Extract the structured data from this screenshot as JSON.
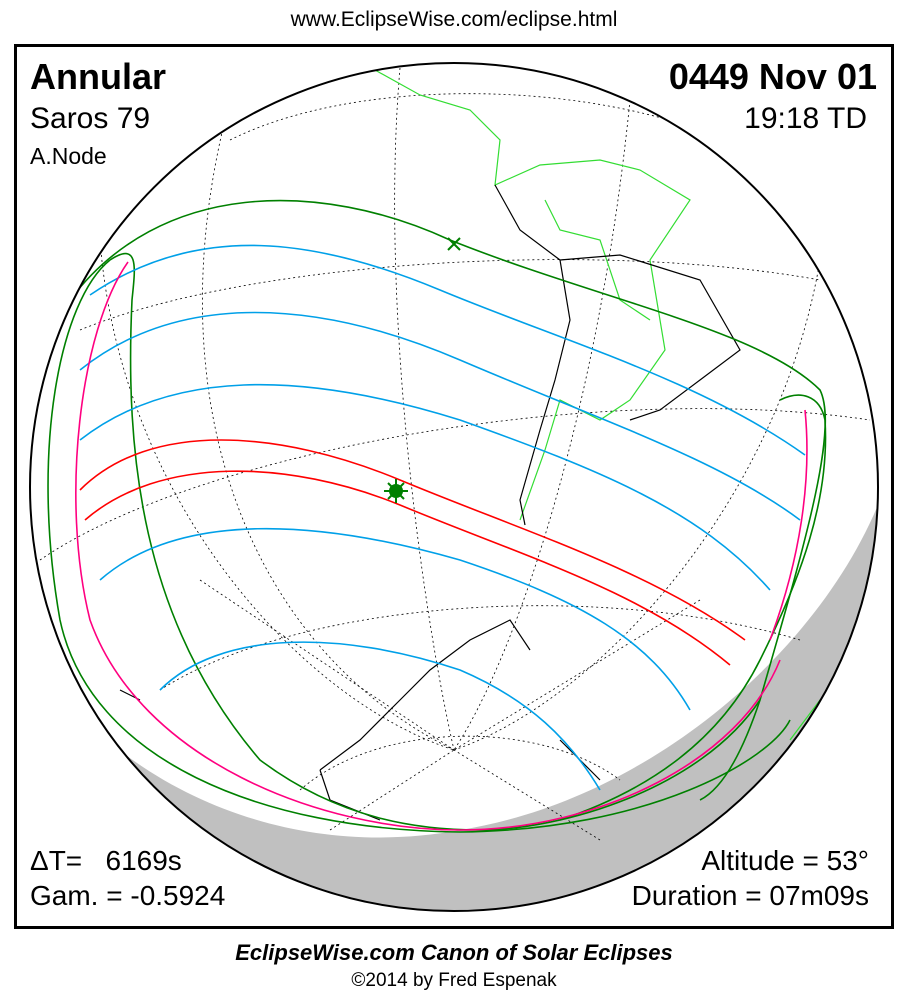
{
  "header_url": "www.EclipseWise.com/eclipse.html",
  "eclipse": {
    "type": "Annular",
    "saros": "Saros  79",
    "node": "A.Node",
    "date": "0449 Nov 01",
    "time": "19:18 TD",
    "delta_t": "ΔT=   6169s",
    "gamma": "Gam. = -0.5924",
    "altitude": "Altitude = 53°",
    "duration": "Duration = 07m09s"
  },
  "footer": {
    "title": "EclipseWise.com Canon of Solar Eclipses",
    "copyright": "©2014 by Fred Espenak"
  },
  "colors": {
    "central_path": "#ff0000",
    "penumbral_limits": "#008000",
    "magnitude_lines": "#00a0e8",
    "rise_set": "#ff0080",
    "land": "#33dd33",
    "night_shadow": "#c0c0c0"
  },
  "icons": [
    "greatest-eclipse-star-icon",
    "greatest-duration-x-icon"
  ]
}
